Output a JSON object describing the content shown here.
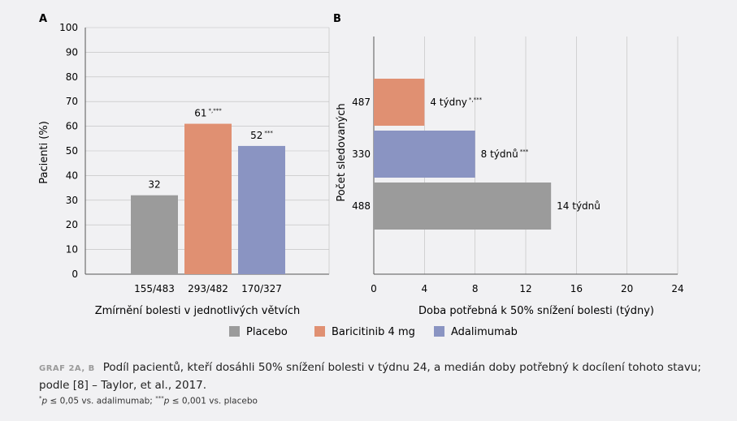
{
  "colors": {
    "Placebo": "#9b9b9b",
    "Baricitinib 4 mg": "#e09072",
    "Adalimumab": "#8a94c2",
    "grid": "#bdbdbd"
  },
  "legend": [
    "Placebo",
    "Baricitinib 4 mg",
    "Adalimumab"
  ],
  "caption": {
    "tag": "GRAF 2A, B",
    "text": "Podíl pacientů, kteří dosáhli 50% snížení bolesti v týdnu 24, a medián doby potřebný k docílení tohoto stavu; podle [8] – Taylor, et al., 2017.",
    "footnote_sup1": "*",
    "footnote_p1": "p",
    "footnote_t1": " ≤ 0,05 vs. adalimumab; ",
    "footnote_sup2": "***",
    "footnote_p2": "p",
    "footnote_t2": " ≤ 0,001 vs. placebo"
  },
  "chart_data": [
    {
      "panel": "A",
      "type": "bar",
      "categories": [
        "155/483",
        "293/482",
        "170/327"
      ],
      "series": [
        "Placebo",
        "Baricitinib 4 mg",
        "Adalimumab"
      ],
      "values": [
        32,
        61,
        52
      ],
      "value_labels": [
        "32",
        "61",
        "52"
      ],
      "value_marks": [
        "",
        "*,***",
        "***"
      ],
      "xlabel": "Zmírnění bolesti v jednotlivých větvích",
      "ylabel": "Pacienti (%)",
      "ylim": [
        0,
        100
      ],
      "yticks": [
        0,
        10,
        20,
        30,
        40,
        50,
        60,
        70,
        80,
        90,
        100
      ],
      "grid": true
    },
    {
      "panel": "B",
      "type": "bar",
      "orientation": "horizontal",
      "categories": [
        "487",
        "330",
        "488"
      ],
      "series": [
        "Baricitinib 4 mg",
        "Adalimumab",
        "Placebo"
      ],
      "values": [
        4,
        8,
        14
      ],
      "value_labels": [
        "4 týdny",
        "8 týdnů",
        "14 týdnů"
      ],
      "value_marks": [
        "*,***",
        "***",
        ""
      ],
      "xlabel": "Doba potřebná k 50% snížení bolesti (týdny)",
      "ylabel": "Počet sledovaných",
      "xlim": [
        0,
        24
      ],
      "xticks": [
        0,
        4,
        8,
        12,
        16,
        20,
        24
      ],
      "grid": true
    }
  ]
}
